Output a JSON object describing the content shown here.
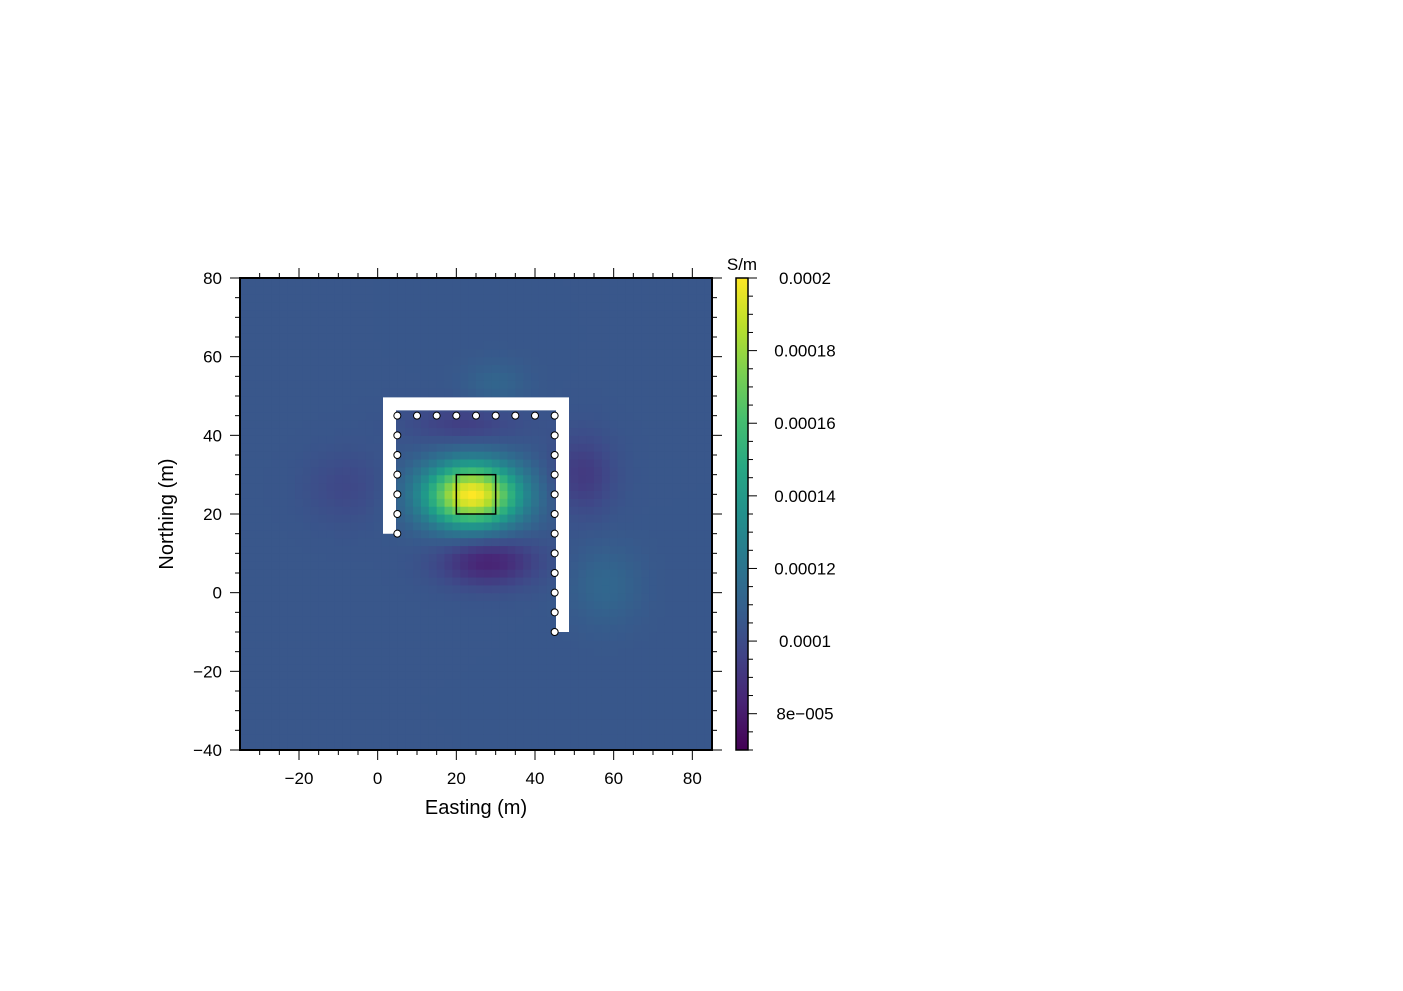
{
  "chart_data": {
    "type": "heatmap",
    "xlabel": "Easting (m)",
    "ylabel": "Northing (m)",
    "xlim": [
      -35,
      85
    ],
    "ylim": [
      -40,
      80
    ],
    "x_ticks": [
      -20,
      0,
      20,
      40,
      60,
      80
    ],
    "x_tick_labels": [
      "−20",
      "0",
      "20",
      "40",
      "60",
      "80"
    ],
    "y_ticks": [
      -40,
      -20,
      0,
      20,
      40,
      60,
      80
    ],
    "y_tick_labels": [
      "−40",
      "−20",
      "0",
      "20",
      "40",
      "60",
      "80"
    ],
    "colorbar": {
      "unit_label": "S/m",
      "colormap": "viridis",
      "range": [
        7e-05,
        0.0002
      ],
      "ticks": [
        8e-05,
        0.0001,
        0.00012,
        0.00014,
        0.00016,
        0.00018,
        0.0002
      ],
      "tick_labels": [
        "8e−005",
        "0.0001",
        "0.00012",
        "0.00014",
        "0.00016",
        "0.00018",
        "0.0002"
      ]
    },
    "background_value": 0.000105,
    "anomalies": [
      {
        "type": "high",
        "center": [
          24,
          25
        ],
        "radius_x": 12,
        "radius_y": 8,
        "peak_value": 0.0002
      },
      {
        "type": "low",
        "center": [
          28,
          8
        ],
        "radius_x": 12,
        "radius_y": 6,
        "peak_value": 8.2e-05
      },
      {
        "type": "low",
        "center": [
          52,
          30
        ],
        "radius_x": 8,
        "radius_y": 10,
        "peak_value": 9.2e-05
      },
      {
        "type": "low",
        "center": [
          22,
          43
        ],
        "radius_x": 14,
        "radius_y": 5,
        "peak_value": 9.4e-05
      },
      {
        "type": "low",
        "center": [
          -8,
          27
        ],
        "radius_x": 10,
        "radius_y": 9,
        "peak_value": 9.8e-05
      },
      {
        "type": "high",
        "center": [
          58,
          2
        ],
        "radius_x": 9,
        "radius_y": 10,
        "peak_value": 0.000113
      },
      {
        "type": "high",
        "center": [
          30,
          53
        ],
        "radius_x": 8,
        "radius_y": 6,
        "peak_value": 0.000112
      }
    ],
    "target_box": {
      "x": [
        20,
        30
      ],
      "y": [
        20,
        30
      ]
    },
    "survey_line": [
      [
        3,
        15
      ],
      [
        3,
        48
      ],
      [
        47,
        48
      ],
      [
        47,
        -10
      ]
    ],
    "stations": [
      [
        5,
        45
      ],
      [
        10,
        45
      ],
      [
        15,
        45
      ],
      [
        20,
        45
      ],
      [
        25,
        45
      ],
      [
        30,
        45
      ],
      [
        35,
        45
      ],
      [
        40,
        45
      ],
      [
        45,
        45
      ],
      [
        5,
        40
      ],
      [
        5,
        35
      ],
      [
        5,
        30
      ],
      [
        5,
        25
      ],
      [
        5,
        20
      ],
      [
        5,
        15
      ],
      [
        45,
        40
      ],
      [
        45,
        35
      ],
      [
        45,
        30
      ],
      [
        45,
        25
      ],
      [
        45,
        20
      ],
      [
        45,
        15
      ],
      [
        45,
        10
      ],
      [
        45,
        5
      ],
      [
        45,
        0
      ],
      [
        45,
        -5
      ],
      [
        45,
        -10
      ]
    ]
  }
}
